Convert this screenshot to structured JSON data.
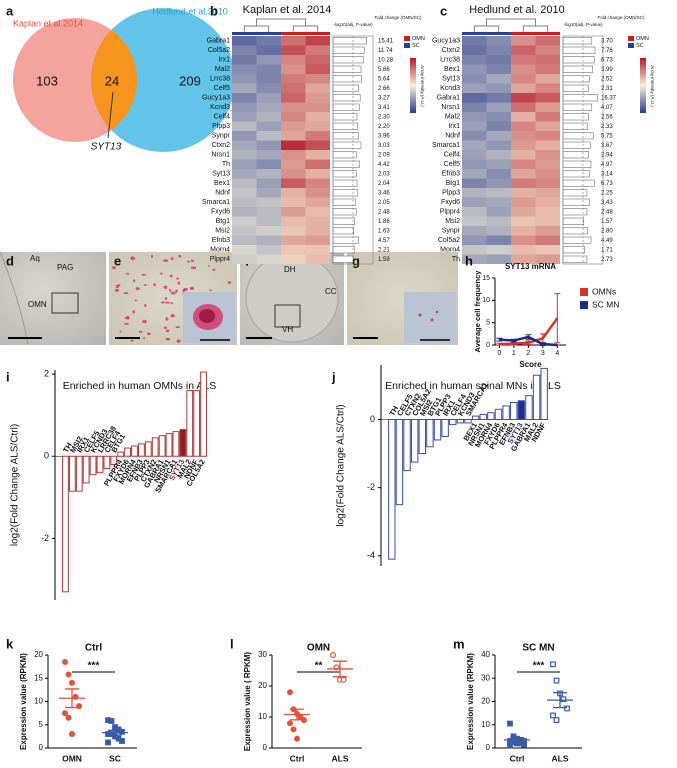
{
  "venn": {
    "letter": "a",
    "left_label": "Kaplan et al.2014",
    "right_label": "Hedlund et al.2010",
    "left_only": "103",
    "both": "24",
    "right_only": "209",
    "callout": "SYT13",
    "left_color": "#f4a49c",
    "right_color": "#62c4e8",
    "overlap_color": "#f7941d"
  },
  "heatmaps": [
    {
      "letter": "b",
      "title": "Kaplan et al. 2014",
      "pvalue_header": "-log10(adj. P-value)",
      "fc_header": "Fold change (OMN/SC)",
      "scale_label": "Array intensity (A.U.)",
      "legend": [
        {
          "name": "OMN",
          "color": "#d7191c"
        },
        {
          "name": "SC",
          "color": "#2c3e9e"
        }
      ],
      "genes": [
        "Gabra1",
        "Col5a2",
        "Irx1",
        "Mal2",
        "Lrrc38",
        "Celf5",
        "Gucy1a3",
        "Kcnd3",
        "Celf4",
        "Plpp3",
        "Synpr",
        "Ctxn2",
        "Nrsn1",
        "Th",
        "Syt13",
        "Bex1",
        "Ndnf",
        "Smarca1",
        "Fxyd6",
        "Btg1",
        "Msi2",
        "Efnb3",
        "Morn4",
        "Plppr4"
      ],
      "fold_change": [
        "15.41",
        "11.74",
        "10.28",
        "5.66",
        "5.64",
        "2.66",
        "3.27",
        "3.41",
        "2.30",
        "2.20",
        "3.96",
        "3.03",
        "2.09",
        "4.42",
        "2.03",
        "2.04",
        "3.46",
        "2.05",
        "2.48",
        "1.86",
        "1.63",
        "4.57",
        "2.21",
        "1.59"
      ],
      "neglog10_padj": [
        4.2,
        3.9,
        3.8,
        3.5,
        3.6,
        3.2,
        3.4,
        3.3,
        3.0,
        3.1,
        3.2,
        3.5,
        2.9,
        3.3,
        2.9,
        3.0,
        3.1,
        2.8,
        2.9,
        2.7,
        2.6,
        3.2,
        2.7,
        2.5
      ],
      "plim": [
        0,
        5
      ],
      "z": [
        [
          -1.5,
          -1.3,
          1.2,
          1.6
        ],
        [
          -1.2,
          -1.4,
          1.5,
          1.1
        ],
        [
          -1.3,
          -1.0,
          1.0,
          1.3
        ],
        [
          -1.1,
          -1.2,
          0.9,
          1.4
        ],
        [
          -1.0,
          -1.2,
          1.1,
          1.0
        ],
        [
          -0.8,
          -1.1,
          1.2,
          0.7
        ],
        [
          -1.2,
          -0.9,
          1.3,
          0.8
        ],
        [
          -1.0,
          -0.8,
          0.9,
          0.9
        ],
        [
          -0.9,
          -0.7,
          1.0,
          0.6
        ],
        [
          -0.6,
          -0.9,
          0.8,
          0.7
        ],
        [
          -1.0,
          -0.6,
          0.7,
          1.1
        ],
        [
          -0.8,
          -1.0,
          1.8,
          1.5
        ],
        [
          -0.7,
          -0.8,
          0.9,
          0.6
        ],
        [
          -0.9,
          -1.1,
          0.8,
          1.2
        ],
        [
          -0.8,
          -0.7,
          0.9,
          0.6
        ],
        [
          -0.6,
          -0.9,
          1.4,
          1.0
        ],
        [
          -0.5,
          -0.8,
          0.6,
          0.9
        ],
        [
          -0.6,
          -0.5,
          0.5,
          0.7
        ],
        [
          -0.7,
          -0.6,
          0.8,
          0.5
        ],
        [
          -0.4,
          -0.6,
          0.5,
          0.6
        ],
        [
          -0.5,
          -0.4,
          0.4,
          0.6
        ],
        [
          -0.6,
          -0.7,
          0.7,
          0.8
        ],
        [
          -0.3,
          -0.5,
          0.4,
          0.4
        ],
        [
          -0.4,
          -0.3,
          0.3,
          0.5
        ]
      ],
      "zlim": [
        -2,
        2
      ]
    },
    {
      "letter": "c",
      "title": "Hedlund et al. 2010",
      "pvalue_header": "-log10(adj. P-value)",
      "fc_header": "Fold change (OMN/SC)",
      "scale_label": "Array intensity (A.U.)",
      "legend": [
        {
          "name": "OMN",
          "color": "#d7191c"
        },
        {
          "name": "SC",
          "color": "#2c3e9e"
        }
      ],
      "genes": [
        "Gucy1a3",
        "Ctxn2",
        "Lrrc38",
        "Bex1",
        "Syt13",
        "Kcnd3",
        "Gabra1",
        "Nrsn1",
        "Mal2",
        "Irx1",
        "Ndnf",
        "Smarca1",
        "Celf4",
        "Celf5",
        "Efnb3",
        "Btg1",
        "Plpp3",
        "Fxyd6",
        "Plppr4",
        "Msi2",
        "Synpr",
        "Col5a2",
        "Morn4",
        "Th"
      ],
      "fold_change": [
        "3.70",
        "7.76",
        "6.73",
        "3.99",
        "2.52",
        "2.31",
        "16.37",
        "4.07",
        "2.56",
        "2.33",
        "5.75",
        "3.67",
        "2.94",
        "4.97",
        "3.14",
        "6.73",
        "2.25",
        "3.43",
        "2.48",
        "1.57",
        "2.80",
        "4.49",
        "1.71",
        "2.73"
      ],
      "neglog10_padj": [
        3.6,
        4.0,
        3.9,
        3.7,
        3.3,
        3.2,
        4.3,
        3.6,
        3.2,
        3.1,
        3.8,
        3.4,
        3.2,
        3.5,
        3.3,
        3.9,
        3.0,
        3.3,
        3.0,
        2.6,
        3.1,
        3.5,
        2.7,
        3.0
      ],
      "plim": [
        0,
        5
      ],
      "z": [
        [
          -1.3,
          -1.1,
          0.9,
          1.2
        ],
        [
          -1.4,
          -1.2,
          1.3,
          1.0
        ],
        [
          -1.2,
          -1.3,
          1.1,
          1.2
        ],
        [
          -1.0,
          -1.2,
          0.9,
          1.1
        ],
        [
          -1.1,
          -0.8,
          1.0,
          0.7
        ],
        [
          -0.9,
          -1.0,
          0.7,
          1.0
        ],
        [
          -1.5,
          -1.3,
          1.6,
          1.4
        ],
        [
          -1.2,
          -0.9,
          1.2,
          0.8
        ],
        [
          -1.0,
          -1.1,
          0.6,
          1.1
        ],
        [
          -0.9,
          -1.2,
          1.0,
          0.7
        ],
        [
          -1.1,
          -0.8,
          0.9,
          1.0
        ],
        [
          -0.8,
          -1.0,
          0.8,
          0.6
        ],
        [
          -0.9,
          -0.7,
          0.6,
          0.9
        ],
        [
          -1.0,
          -0.9,
          1.0,
          0.8
        ],
        [
          -0.8,
          -1.1,
          0.7,
          0.9
        ],
        [
          -1.2,
          -1.0,
          1.1,
          1.0
        ],
        [
          -0.7,
          -0.6,
          0.6,
          0.7
        ],
        [
          -0.9,
          -0.8,
          0.8,
          0.6
        ],
        [
          -0.6,
          -0.9,
          0.7,
          0.5
        ],
        [
          -0.5,
          -0.6,
          0.4,
          0.5
        ],
        [
          -0.8,
          -0.7,
          0.6,
          0.8
        ],
        [
          -1.0,
          -1.2,
          0.9,
          1.1
        ],
        [
          -0.5,
          -0.4,
          0.5,
          0.4
        ],
        [
          -0.8,
          -0.9,
          0.7,
          0.8
        ]
      ],
      "zlim": [
        -2,
        2
      ]
    }
  ],
  "micrographs": {
    "d": {
      "letter": "d",
      "labels": [
        "Aq",
        "PAG",
        "OMN"
      ]
    },
    "e": {
      "letter": "e"
    },
    "f": {
      "letter": "f",
      "labels": [
        "DH",
        "CC",
        "VH"
      ]
    },
    "g": {
      "letter": "g"
    }
  },
  "chart_data": [
    {
      "type": "line",
      "letter": "h",
      "title": "SYT13 mRNA",
      "xlabel": "Score",
      "ylabel": "Average cell frequency",
      "x": [
        0,
        1,
        2,
        3,
        4
      ],
      "xlim": [
        -0.3,
        4.6
      ],
      "xticks": [
        0,
        1,
        2,
        3,
        4
      ],
      "ylim": [
        0,
        15
      ],
      "yticks": [
        0,
        5,
        10,
        15
      ],
      "series": [
        {
          "name": "OMNs",
          "color": "#d7322b",
          "values": [
            0.2,
            0.3,
            0.5,
            1.5,
            6
          ],
          "errors": [
            0.2,
            0.3,
            0.4,
            1,
            5.5
          ]
        },
        {
          "name": "SC MN",
          "color": "#1c2a8a",
          "values": [
            1.2,
            1,
            1.8,
            0.2,
            0
          ],
          "errors": [
            0.3,
            0.3,
            0.5,
            0.3,
            0
          ]
        }
      ]
    },
    {
      "type": "bar",
      "letter": "i",
      "title": "Enriched in human OMNs in ALS",
      "ylabel": "log2(Fold Change ALS/Ctrl)",
      "categories": [
        "TH",
        "MSI2",
        "IRX1",
        "CELF5",
        "KCND3",
        "LRRC38",
        "CELF4",
        "BTG1",
        "PLPPR4",
        "FXYD6",
        "MORN4",
        "EFNB3",
        "PLPP3",
        "CTXN2",
        "GABRA1",
        "NRSN1",
        "SMARCA1",
        "SYT13",
        "MAL2",
        "NDNF",
        "COL5A2"
      ],
      "values": [
        -3.3,
        -0.85,
        -0.85,
        -0.65,
        -0.45,
        -0.4,
        -0.3,
        -0.2,
        0.1,
        0.2,
        0.25,
        0.3,
        0.35,
        0.45,
        0.5,
        0.55,
        0.6,
        0.65,
        1.6,
        1.6,
        2.05
      ],
      "color": "#b03a3a",
      "fills": [
        "#ffffff",
        "#ffffff",
        "#ffffff",
        "#ffffff",
        "#ffffff",
        "#ffffff",
        "#ffffff",
        "#ffffff",
        "#ffffff",
        "#ffffff",
        "#ffffff",
        "#ffffff",
        "#ffffff",
        "#ffffff",
        "#ffffff",
        "#ffffff",
        "#ffffff",
        "#8b1f1f",
        "#ffffff",
        "#ffffff",
        "#ffffff"
      ],
      "ylim": [
        -3.5,
        2.1
      ],
      "yticks": [
        -2,
        0,
        2
      ]
    },
    {
      "type": "bar",
      "letter": "j",
      "title": "Enriched in human spinal MNs in ALS",
      "ylabel": "log2(Fold Change ALS/Ctrl)",
      "categories": [
        "TH",
        "CELF5",
        "CTXN2",
        "COL5A2",
        "MSI2",
        "BTG1",
        "PLPP3",
        "IRX1",
        "CELF4",
        "KCND3",
        "SMARCA1",
        "BEX1",
        "NRSN1",
        "MORN4",
        "FXYD6",
        "PLPPR4",
        "EFNB3",
        "SYT13",
        "GABRA1",
        "MAL2",
        "NDNF"
      ],
      "values": [
        -4.1,
        -2.5,
        -1.5,
        -1.25,
        -1.0,
        -0.8,
        -0.6,
        -0.5,
        -0.15,
        -0.1,
        -0.1,
        0.1,
        0.15,
        0.2,
        0.3,
        0.4,
        0.5,
        0.55,
        0.7,
        1.3,
        1.5
      ],
      "color": "#3c4fa0",
      "fills": [
        "#ffffff",
        "#ffffff",
        "#ffffff",
        "#ffffff",
        "#ffffff",
        "#ffffff",
        "#ffffff",
        "#ffffff",
        "#ffffff",
        "#ffffff",
        "#ffffff",
        "#ffffff",
        "#ffffff",
        "#ffffff",
        "#ffffff",
        "#ffffff",
        "#ffffff",
        "#1f2f8a",
        "#ffffff",
        "#ffffff",
        "#ffffff"
      ],
      "ylim": [
        -4.3,
        1.6
      ],
      "yticks": [
        -4,
        -2,
        0
      ]
    },
    {
      "type": "dot",
      "letter": "k",
      "title": "Ctrl",
      "ylabel": "Expression value (RPKM)",
      "categories": [
        "OMN",
        "SC"
      ],
      "significance": "***",
      "ylim": [
        0,
        20
      ],
      "yticks": [
        0,
        5,
        10,
        15,
        20
      ],
      "groups": [
        {
          "values": [
            18.5,
            15.8,
            14,
            11,
            9,
            7.5,
            6.5,
            3
          ],
          "mean": 10.7,
          "sem": 2,
          "color": "#e0533c",
          "marker": "circle",
          "filled": true
        },
        {
          "values": [
            6,
            5.8,
            4.5,
            4,
            3.5,
            3,
            3,
            2.5,
            2,
            1.5,
            1.2
          ],
          "mean": 3.3,
          "sem": 0.5,
          "color": "#3a5aa8",
          "marker": "square",
          "filled": true
        }
      ]
    },
    {
      "type": "dot",
      "letter": "l",
      "title": "OMN",
      "ylabel": "Expression value ( RPKM)",
      "categories": [
        "Ctrl",
        "ALS"
      ],
      "significance": "**",
      "ylim": [
        0,
        30
      ],
      "yticks": [
        0,
        10,
        20,
        30
      ],
      "groups": [
        {
          "values": [
            18,
            12.5,
            11,
            10,
            9,
            8,
            6,
            3
          ],
          "mean": 10.8,
          "sem": 1.7,
          "color": "#e0533c",
          "marker": "circle",
          "filled": true
        },
        {
          "values": [
            30,
            26,
            22,
            22
          ],
          "mean": 25.5,
          "sem": 2.5,
          "color": "#e0533c",
          "marker": "circle",
          "filled": false
        }
      ]
    },
    {
      "type": "dot",
      "letter": "m",
      "title": "SC MN",
      "ylabel": "Expression value (RPKM)",
      "categories": [
        "Ctrl",
        "ALS"
      ],
      "significance": "***",
      "ylim": [
        0,
        40
      ],
      "yticks": [
        0,
        10,
        20,
        30,
        40
      ],
      "groups": [
        {
          "values": [
            10.5,
            5,
            4,
            3.5,
            3,
            3,
            2.5,
            2,
            2,
            1.5,
            1
          ],
          "mean": 3.5,
          "sem": 0.8,
          "color": "#3a5aa8",
          "marker": "square",
          "filled": true
        },
        {
          "values": [
            36,
            29,
            23.5,
            21,
            17,
            14,
            12
          ],
          "mean": 20.6,
          "sem": 3.2,
          "color": "#3a5aa8",
          "marker": "square",
          "filled": false
        }
      ]
    }
  ]
}
